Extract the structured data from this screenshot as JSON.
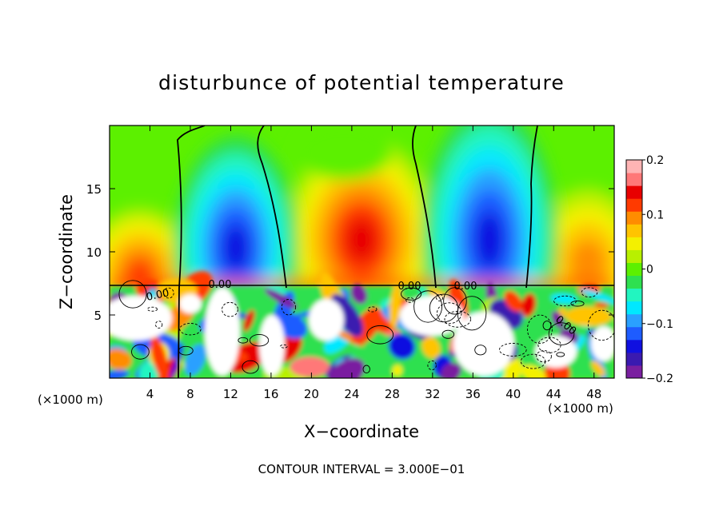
{
  "chart_data": {
    "type": "heatmap",
    "title": "disturbunce of potential temperature",
    "xlabel": "X−coordinate",
    "ylabel": "Z−coordinate",
    "x_unit_left": "(×1000 m)",
    "x_unit_right": "(×1000 m)",
    "footer": "CONTOUR INTERVAL = 3.000E−01",
    "xlim": [
      0,
      50
    ],
    "ylim": [
      0,
      20
    ],
    "x_ticks": [
      4,
      8,
      12,
      16,
      20,
      24,
      28,
      32,
      36,
      40,
      44,
      48
    ],
    "y_ticks": [
      5,
      10,
      15
    ],
    "colorbar": {
      "min": -0.2,
      "max": 0.2,
      "ticks": [
        0.2,
        0.1,
        0,
        -0.1,
        -0.2
      ],
      "tick_labels": [
        "0.2",
        "0.1",
        "0",
        "−0.1",
        "−0.2"
      ],
      "colors": [
        "#7a1fa0",
        "#3a1ab0",
        "#1010e0",
        "#1e5cff",
        "#2aa0ff",
        "#00e8ff",
        "#22f5c0",
        "#2ee050",
        "#5cf000",
        "#b8f000",
        "#f4f000",
        "#ffc400",
        "#ff8c00",
        "#ff3a00",
        "#e80000",
        "#ff7878",
        "#ffb4b4"
      ]
    },
    "contour_labels": [
      "0.00",
      "0.00",
      "0.00",
      "0.00",
      "0.00"
    ]
  }
}
